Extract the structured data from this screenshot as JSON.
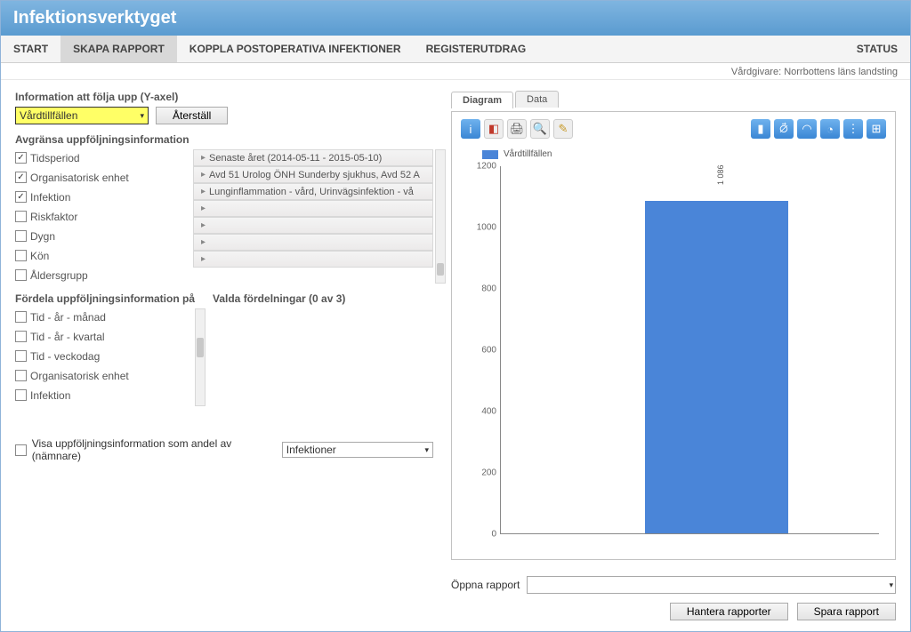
{
  "app": {
    "title": "Infektionsverktyget"
  },
  "nav": {
    "items": [
      "START",
      "SKAPA RAPPORT",
      "KOPPLA POSTOPERATIVA INFEKTIONER",
      "REGISTERUTDRAG",
      "STATUS"
    ],
    "active_index": 1,
    "provider_line": "Vårdgivare: Norrbottens läns landsting"
  },
  "yaxis": {
    "label": "Information att följa upp (Y-axel)",
    "selected": "Vårdtillfällen",
    "reset_btn": "Återställ"
  },
  "filter": {
    "label": "Avgränsa uppföljningsinformation",
    "rows": [
      {
        "name": "Tidsperiod",
        "checked": true,
        "value": "Senaste året (2014-05-11 - 2015-05-10)"
      },
      {
        "name": "Organisatorisk enhet",
        "checked": true,
        "value": "Avd 51 Urolog ÖNH Sunderby sjukhus, Avd 52 A"
      },
      {
        "name": "Infektion",
        "checked": true,
        "value": "Lunginflammation - vård, Urinvägsinfektion - vå"
      },
      {
        "name": "Riskfaktor",
        "checked": false,
        "value": ""
      },
      {
        "name": "Dygn",
        "checked": false,
        "value": ""
      },
      {
        "name": "Kön",
        "checked": false,
        "value": ""
      },
      {
        "name": "Åldersgrupp",
        "checked": false,
        "value": ""
      }
    ]
  },
  "dist": {
    "left_label": "Fördela uppföljningsinformation på",
    "right_label": "Valda fördelningar (0 av 3)",
    "items": [
      {
        "name": "Tid - år - månad",
        "checked": false
      },
      {
        "name": "Tid - år - kvartal",
        "checked": false
      },
      {
        "name": "Tid - veckodag",
        "checked": false
      },
      {
        "name": "Organisatorisk enhet",
        "checked": false
      },
      {
        "name": "Infektion",
        "checked": false
      }
    ]
  },
  "denom": {
    "check_label": "Visa uppföljningsinformation som andel av (nämnare)",
    "selected": "Infektioner"
  },
  "tabs": {
    "items": [
      "Diagram",
      "Data"
    ],
    "active_index": 0
  },
  "chart": {
    "legend_label": "Vårdtillfällen",
    "legend_color": "#4a85d8",
    "y_ticks": [
      0,
      200,
      400,
      600,
      800,
      1000,
      1200
    ],
    "y_max": 1200,
    "bar_value": 1086,
    "bar_value_label": "1 086",
    "bar_color": "#4a85d8"
  },
  "footer": {
    "open_label": "Öppna rapport",
    "manage_btn": "Hantera rapporter",
    "save_btn": "Spara rapport"
  }
}
